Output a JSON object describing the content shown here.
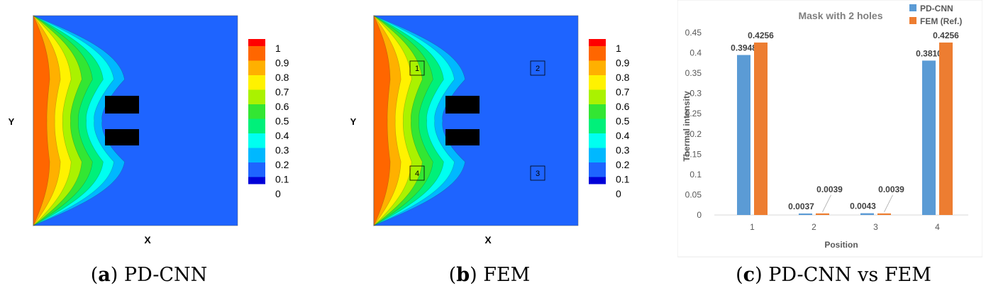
{
  "colorbar": {
    "labels": [
      "1",
      "0.9",
      "0.8",
      "0.7",
      "0.6",
      "0.5",
      "0.4",
      "0.3",
      "0.2",
      "0.1",
      "0"
    ],
    "colors": [
      "#ff0000",
      "#ff6600",
      "#ffb000",
      "#fff200",
      "#aaf200",
      "#33e633",
      "#00f07a",
      "#00fff0",
      "#00b8ff",
      "#1e64ff",
      "#0000d8"
    ]
  },
  "field_colors": {
    "background": "#1e64ff",
    "hole": "#000000",
    "contours": [
      "#00b8ff",
      "#00fff0",
      "#00f07a",
      "#33e633",
      "#aaf200",
      "#fff200",
      "#ffb000",
      "#ff6600"
    ]
  },
  "panel_a": {
    "xlabel": "X",
    "ylabel": "Y",
    "caption_letter": "a",
    "caption_text": "PD-CNN"
  },
  "panel_b": {
    "xlabel": "X",
    "ylabel": "Y",
    "caption_letter": "b",
    "caption_text": "FEM",
    "markers": [
      "1",
      "2",
      "3",
      "4"
    ]
  },
  "panel_c": {
    "caption_letter": "c",
    "caption_text": "PD-CNN vs FEM"
  },
  "chart_data": {
    "type": "bar",
    "title": "Mask with 2 holes",
    "xlabel": "Position",
    "ylabel": "Thermal intensity",
    "categories": [
      "1",
      "2",
      "3",
      "4"
    ],
    "series": [
      {
        "name": "PD-CNN",
        "values": [
          0.3948,
          0.0037,
          0.0043,
          0.381
        ],
        "labels": [
          "0.3948",
          "0.0037",
          "0.0043",
          "0.3810"
        ],
        "color": "#5b9bd5"
      },
      {
        "name": "FEM (Ref.)",
        "values": [
          0.4256,
          0.0039,
          0.0039,
          0.4256
        ],
        "labels": [
          "0.4256",
          "0.0039",
          "0.0039",
          "0.4256"
        ],
        "color": "#ed7d31"
      }
    ],
    "ylim": [
      0,
      0.45
    ],
    "yticks": [
      "0",
      "0.05",
      "0.1",
      "0.15",
      "0.2",
      "0.25",
      "0.3",
      "0.35",
      "0.4",
      "0.45"
    ],
    "grid": false,
    "legend_position": "top-right"
  }
}
